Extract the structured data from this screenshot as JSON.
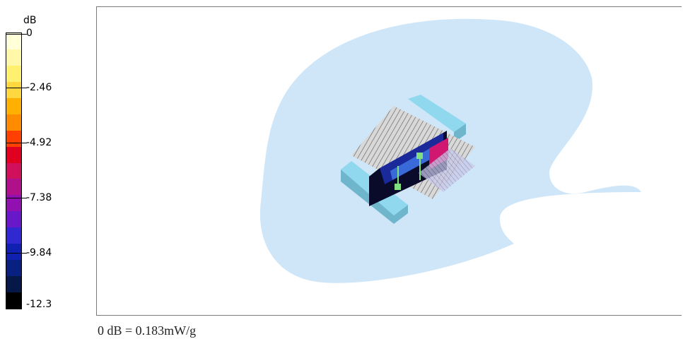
{
  "legend": {
    "unit": "dB",
    "ticks": [
      "0",
      "-2.46",
      "-4.92",
      "-7.38",
      "-9.84",
      "-12.3"
    ],
    "colors": [
      "#ffffd8",
      "#fff8a8",
      "#fff070",
      "#ffd840",
      "#ffb000",
      "#ff8c00",
      "#ff4000",
      "#e00020",
      "#d0105a",
      "#b0108a",
      "#9010b0",
      "#6818c8",
      "#3028d0",
      "#1020b0",
      "#082080",
      "#061848",
      "#000000"
    ]
  },
  "plot": {
    "phantom_color": "#cfe6f8",
    "block_color": "#8fd8ee",
    "field_colors": [
      "#0a0a2a",
      "#1a2a9a",
      "#3a6ad8",
      "#d01870"
    ],
    "marker_color": "#7fe07f"
  },
  "caption": "0 dB = 0.183mW/g"
}
